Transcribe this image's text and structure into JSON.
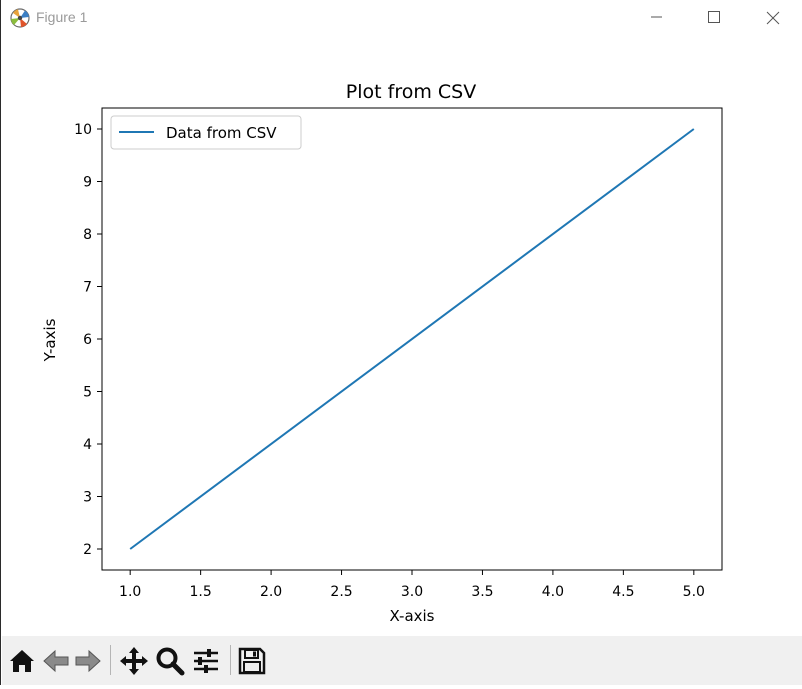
{
  "window": {
    "title": "Figure 1",
    "icon": "matplotlib-icon",
    "controls": [
      "minimize-icon",
      "maximize-icon",
      "close-icon"
    ]
  },
  "chart_data": {
    "type": "line",
    "title": "Plot from CSV",
    "xlabel": "X-axis",
    "ylabel": "Y-axis",
    "x": [
      1.0,
      5.0
    ],
    "series": [
      {
        "name": "Data from CSV",
        "values": [
          2,
          10
        ],
        "color": "#1f77b4"
      }
    ],
    "xlim": [
      0.8,
      5.2
    ],
    "ylim": [
      1.6,
      10.4
    ],
    "xticks": [
      "1.0",
      "1.5",
      "2.0",
      "2.5",
      "3.0",
      "3.5",
      "4.0",
      "4.5",
      "5.0"
    ],
    "yticks": [
      "2",
      "3",
      "4",
      "5",
      "6",
      "7",
      "8",
      "9",
      "10"
    ],
    "xtick_values": [
      1.0,
      1.5,
      2.0,
      2.5,
      3.0,
      3.5,
      4.0,
      4.5,
      5.0
    ],
    "ytick_values": [
      2,
      3,
      4,
      5,
      6,
      7,
      8,
      9,
      10
    ],
    "grid": false,
    "legend": "top-left"
  },
  "toolbar": {
    "buttons": [
      "home-icon",
      "back-icon",
      "forward-icon",
      "pan-icon",
      "zoom-icon",
      "configure-subplots-icon",
      "save-icon"
    ]
  }
}
